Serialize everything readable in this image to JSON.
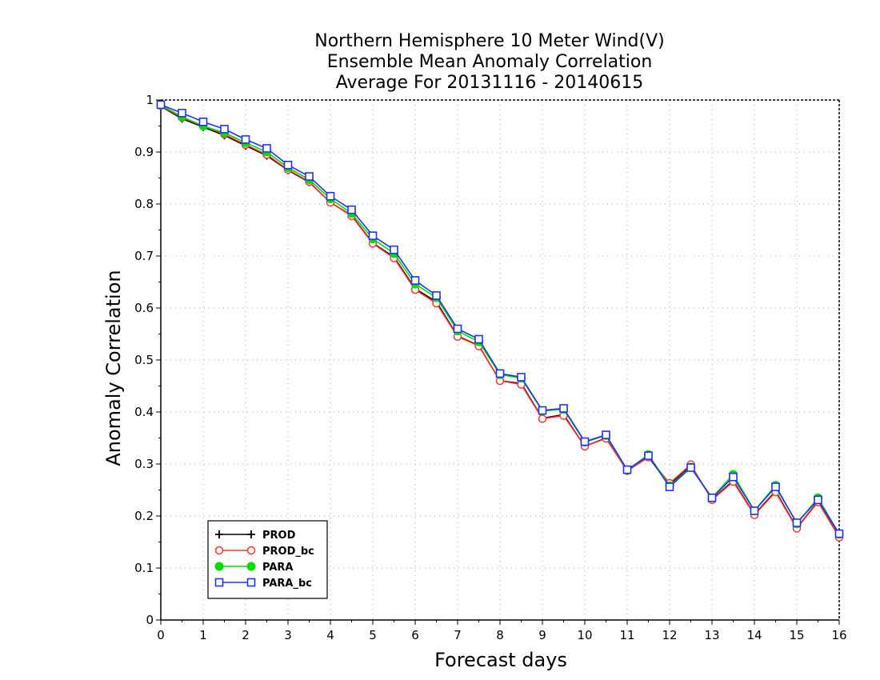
{
  "chart_data": {
    "type": "line",
    "title": [
      "Northern Hemisphere 10 Meter Wind(V)",
      "Ensemble Mean Anomaly Correlation",
      "Average For 20131116 - 20140615"
    ],
    "xlabel": "Forecast days",
    "ylabel": "Anomaly Correlation",
    "xlim": [
      0,
      16
    ],
    "ylim": [
      0,
      1
    ],
    "x_ticks": [
      "0",
      "1",
      "2",
      "3",
      "4",
      "5",
      "6",
      "7",
      "8",
      "9",
      "10",
      "11",
      "12",
      "13",
      "14",
      "15",
      "16"
    ],
    "y_ticks": [
      "0",
      "0.1",
      "0.2",
      "0.3",
      "0.4",
      "0.5",
      "0.6",
      "0.7",
      "0.8",
      "0.9",
      "1"
    ],
    "grid": true,
    "legend_position": "bottom-left",
    "x": [
      0,
      0.5,
      1,
      1.5,
      2,
      2.5,
      3,
      3.5,
      4,
      4.5,
      5,
      5.5,
      6,
      6.5,
      7,
      7.5,
      8,
      8.5,
      9,
      9.5,
      10,
      10.5,
      11,
      11.5,
      12,
      12.5,
      13,
      13.5,
      14,
      14.5,
      15,
      15.5,
      16
    ],
    "series": [
      {
        "name": "PROD",
        "color": "#000000",
        "marker": "plus",
        "values": [
          0.988,
          0.964,
          0.948,
          0.932,
          0.912,
          0.893,
          0.865,
          0.842,
          0.803,
          0.778,
          0.725,
          0.698,
          0.637,
          0.612,
          0.546,
          0.528,
          0.46,
          0.455,
          0.388,
          0.395,
          0.334,
          0.35,
          0.287,
          0.313,
          0.26,
          0.297,
          0.232,
          0.268,
          0.203,
          0.248,
          0.177,
          0.228,
          0.16
        ]
      },
      {
        "name": "PROD_bc",
        "color": "#ff3333",
        "marker": "open-circle",
        "values": [
          0.989,
          0.966,
          0.95,
          0.934,
          0.914,
          0.895,
          0.866,
          0.843,
          0.803,
          0.777,
          0.724,
          0.696,
          0.635,
          0.609,
          0.545,
          0.527,
          0.46,
          0.453,
          0.387,
          0.393,
          0.334,
          0.349,
          0.287,
          0.313,
          0.263,
          0.299,
          0.231,
          0.266,
          0.202,
          0.246,
          0.176,
          0.227,
          0.159
        ]
      },
      {
        "name": "PARA",
        "color": "#00dd00",
        "marker": "filled-circle",
        "values": [
          0.99,
          0.968,
          0.95,
          0.937,
          0.918,
          0.9,
          0.87,
          0.847,
          0.81,
          0.782,
          0.733,
          0.705,
          0.646,
          0.62,
          0.556,
          0.535,
          0.472,
          0.465,
          0.402,
          0.405,
          0.342,
          0.355,
          0.288,
          0.318,
          0.258,
          0.294,
          0.235,
          0.28,
          0.21,
          0.259,
          0.185,
          0.235,
          0.165
        ]
      },
      {
        "name": "PARA_bc",
        "color": "#2233ee",
        "marker": "open-square",
        "values": [
          0.991,
          0.975,
          0.958,
          0.944,
          0.924,
          0.907,
          0.875,
          0.853,
          0.815,
          0.789,
          0.739,
          0.712,
          0.653,
          0.624,
          0.56,
          0.54,
          0.474,
          0.467,
          0.403,
          0.407,
          0.343,
          0.356,
          0.289,
          0.316,
          0.256,
          0.293,
          0.235,
          0.275,
          0.21,
          0.256,
          0.187,
          0.231,
          0.166
        ]
      }
    ]
  }
}
